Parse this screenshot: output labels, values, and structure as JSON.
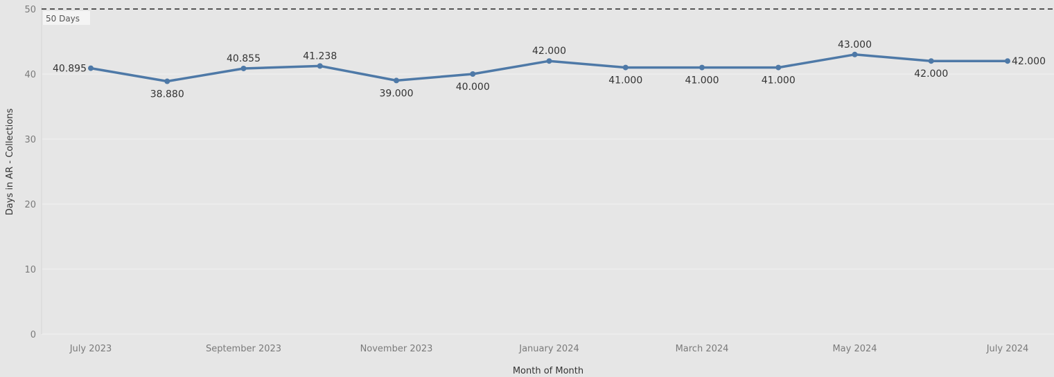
{
  "chart_data": {
    "type": "line",
    "xlabel": "Month of Month",
    "ylabel": "Days in AR - Collections",
    "ylim": [
      0,
      50
    ],
    "y_ticks": [
      0,
      10,
      20,
      30,
      40,
      50
    ],
    "grid": true,
    "legend": "none",
    "x": [
      "July 2023",
      "August 2023",
      "September 2023",
      "October 2023",
      "November 2023",
      "December 2023",
      "January 2024",
      "February 2024",
      "March 2024",
      "April 2024",
      "May 2024",
      "June 2024",
      "July 2024"
    ],
    "x_tick_labels": [
      "July 2023",
      "September 2023",
      "November 2023",
      "January 2024",
      "March 2024",
      "May 2024",
      "July 2024"
    ],
    "series": [
      {
        "values": [
          40.895,
          38.88,
          40.855,
          41.238,
          39.0,
          40.0,
          42.0,
          41.0,
          41.0,
          41.0,
          43.0,
          42.0,
          42.0
        ],
        "labels": [
          "40.895",
          "38.880",
          "40.855",
          "41.238",
          "39.000",
          "40.000",
          "42.000",
          "41.000",
          "41.000",
          "41.000",
          "43.000",
          "42.000",
          "42.000"
        ],
        "color": "#4e79a7"
      }
    ],
    "reference_line": {
      "value": 50,
      "label": "50 Days",
      "style": "dashed",
      "color": "#555555"
    }
  }
}
